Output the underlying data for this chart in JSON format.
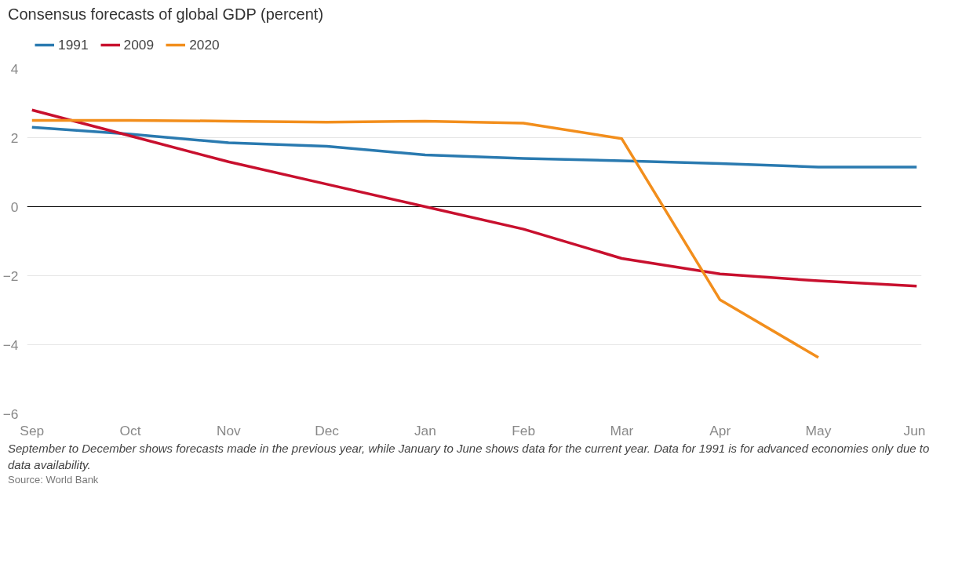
{
  "chart_data": {
    "type": "line",
    "title": "Consensus forecasts of global GDP (percent)",
    "categories": [
      "Sep",
      "Oct",
      "Nov",
      "Dec",
      "Jan",
      "Feb",
      "Mar",
      "Apr",
      "May",
      "Jun"
    ],
    "series": [
      {
        "name": "1991",
        "color": "#2a7ab0",
        "values": [
          2.3,
          2.1,
          1.85,
          1.75,
          1.5,
          1.4,
          1.33,
          1.25,
          1.15,
          1.15
        ]
      },
      {
        "name": "2009",
        "color": "#c8102e",
        "values": [
          2.8,
          2.05,
          1.3,
          0.65,
          0.0,
          -0.65,
          -1.5,
          -1.95,
          -2.15,
          -2.3
        ]
      },
      {
        "name": "2020",
        "color": "#f28e1c",
        "values": [
          2.5,
          2.5,
          2.48,
          2.45,
          2.48,
          2.42,
          1.97,
          -2.7,
          -4.37,
          null
        ]
      }
    ],
    "ylim": [
      -6,
      4
    ],
    "yticks": [
      -6,
      -4,
      -2,
      0,
      2,
      4
    ],
    "grid": "y",
    "legend": "top left",
    "marker": "none",
    "line_style": "solid",
    "ref_lines": [
      {
        "axis": "y",
        "value": 0,
        "color": "#000000"
      }
    ],
    "annotations": [
      "September to December shows forecasts made in the previous year, while January to June shows data for the current year. Data for 1991 is for advanced economies only due to data availability.",
      "Source: World Bank"
    ]
  }
}
